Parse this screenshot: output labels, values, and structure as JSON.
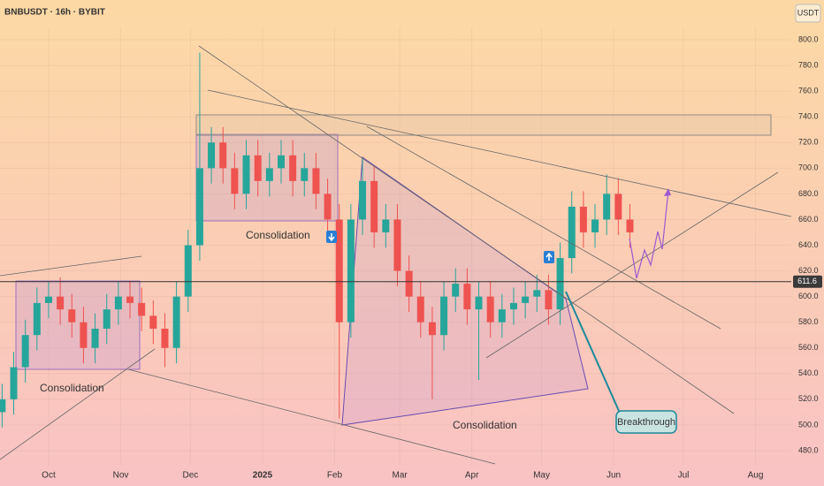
{
  "header": {
    "title": "BNBUSDT · 16h · BYBIT",
    "currency": "USDT"
  },
  "chart_data": {
    "type": "candlestick",
    "x": [
      -20,
      -15,
      -10,
      -5,
      0,
      5,
      10,
      15,
      20,
      25,
      30,
      35,
      40,
      45,
      50,
      55,
      60,
      65,
      70,
      75,
      80,
      85,
      90,
      95,
      100,
      105,
      110,
      115,
      120,
      125,
      130,
      135,
      140,
      145,
      150,
      155,
      160,
      165,
      170,
      175,
      180,
      185,
      190,
      195,
      200,
      205,
      210,
      215,
      220,
      225,
      230,
      235,
      240,
      245,
      250
    ],
    "open": [
      510,
      520,
      545,
      570,
      595,
      600,
      590,
      580,
      560,
      575,
      590,
      600,
      595,
      585,
      575,
      560,
      600,
      640,
      700,
      720,
      700,
      680,
      710,
      690,
      700,
      710,
      690,
      700,
      680,
      660,
      580,
      660,
      690,
      650,
      660,
      620,
      600,
      580,
      570,
      600,
      610,
      590,
      600,
      580,
      590,
      595,
      600,
      605,
      590,
      630,
      670,
      650,
      660,
      680,
      660
    ],
    "high": [
      532,
      557,
      582,
      607,
      612,
      615,
      602,
      592,
      587,
      602,
      612,
      612,
      607,
      597,
      587,
      612,
      652,
      790,
      732,
      732,
      712,
      722,
      722,
      712,
      722,
      722,
      712,
      712,
      692,
      672,
      672,
      708,
      702,
      672,
      672,
      632,
      612,
      592,
      612,
      622,
      622,
      612,
      612,
      602,
      607,
      612,
      617,
      617,
      642,
      682,
      682,
      672,
      695,
      692,
      672
    ],
    "low": [
      498,
      508,
      533,
      558,
      583,
      578,
      568,
      548,
      548,
      563,
      578,
      583,
      573,
      563,
      545,
      548,
      588,
      628,
      688,
      688,
      668,
      668,
      678,
      678,
      688,
      678,
      678,
      668,
      648,
      505,
      568,
      648,
      638,
      638,
      608,
      588,
      568,
      520,
      558,
      588,
      578,
      535,
      568,
      568,
      578,
      583,
      588,
      578,
      578,
      618,
      638,
      638,
      648,
      648,
      638
    ],
    "close": [
      520,
      545,
      570,
      595,
      600,
      590,
      580,
      560,
      575,
      590,
      600,
      595,
      585,
      575,
      560,
      600,
      640,
      700,
      720,
      700,
      680,
      710,
      690,
      700,
      710,
      690,
      700,
      680,
      660,
      580,
      660,
      690,
      650,
      660,
      620,
      600,
      580,
      570,
      600,
      610,
      590,
      600,
      580,
      590,
      595,
      600,
      605,
      590,
      630,
      670,
      650,
      660,
      680,
      660,
      650
    ],
    "up_color": "#26a69a",
    "down_color": "#ef5350",
    "xlim": [
      -20.9,
      319.4
    ],
    "xticks": [
      {
        "value": 0,
        "label": "Oct"
      },
      {
        "value": 31,
        "label": "Nov"
      },
      {
        "value": 61,
        "label": "Dec"
      },
      {
        "value": 92,
        "label": "2025"
      },
      {
        "value": 123,
        "label": "Feb"
      },
      {
        "value": 151,
        "label": "Mar"
      },
      {
        "value": 182,
        "label": "Apr"
      },
      {
        "value": 212,
        "label": "May"
      },
      {
        "value": 243,
        "label": "Jun"
      },
      {
        "value": 273,
        "label": "Jul"
      },
      {
        "value": 304,
        "label": "Aug"
      }
    ],
    "ylim": [
      472,
      810
    ],
    "yticks": [
      {
        "value": 480,
        "label": "480.0"
      },
      {
        "value": 500,
        "label": "500.0"
      },
      {
        "value": 520,
        "label": "520.0"
      },
      {
        "value": 540,
        "label": "540.0"
      },
      {
        "value": 560,
        "label": "560.0"
      },
      {
        "value": 580,
        "label": "580.0"
      },
      {
        "value": 600,
        "label": "600.0"
      },
      {
        "value": 620,
        "label": "620.0"
      },
      {
        "value": 640,
        "label": "640.0"
      },
      {
        "value": 660,
        "label": "660.0"
      },
      {
        "value": 680,
        "label": "680.0"
      },
      {
        "value": 700,
        "label": "700.0"
      },
      {
        "value": 720,
        "label": "720.0"
      },
      {
        "value": 740,
        "label": "740.0"
      },
      {
        "value": 760,
        "label": "760.0"
      },
      {
        "value": 780,
        "label": "780.0"
      },
      {
        "value": 800,
        "label": "800.0"
      }
    ],
    "price_line": {
      "value": 611.6,
      "label": "611.6"
    },
    "annotations": [
      "Consolidation",
      "Consolidation",
      "Consolidation",
      "Breakthrough"
    ]
  }
}
